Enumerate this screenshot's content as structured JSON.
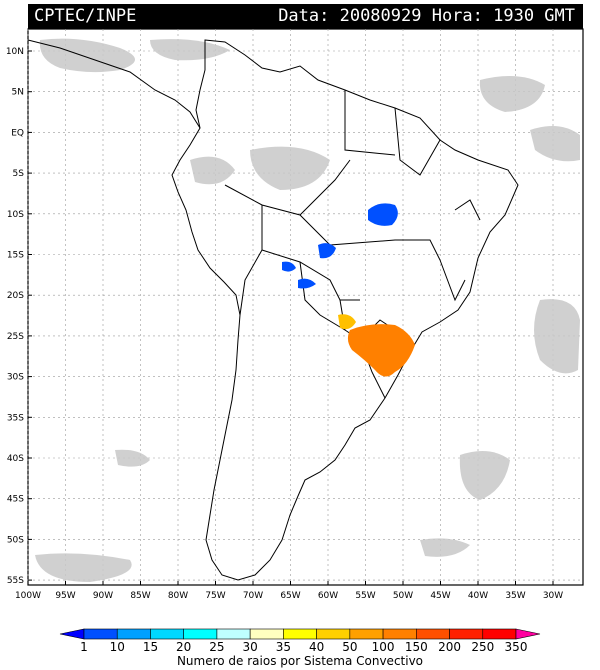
{
  "header": {
    "source": "CPTEC/INPE",
    "datetime": "Data: 20080929 Hora: 1930 GMT"
  },
  "map": {
    "lat_labels": [
      "10N",
      "5N",
      "EQ",
      "5S",
      "10S",
      "15S",
      "20S",
      "25S",
      "30S",
      "35S",
      "40S",
      "45S",
      "50S",
      "55S"
    ],
    "lon_labels": [
      "100W",
      "95W",
      "90W",
      "85W",
      "80W",
      "75W",
      "70W",
      "65W",
      "60W",
      "55W",
      "50W",
      "45W",
      "40W",
      "35W",
      "30W"
    ],
    "colors": {
      "ocean": "#ffffff",
      "land_border": "#000000",
      "cloud": "#c8c8c8",
      "grid": "#9a9a9a"
    }
  },
  "legend": {
    "title": "Numero de raios por Sistema Convectivo",
    "labels": [
      "1",
      "10",
      "15",
      "20",
      "25",
      "30",
      "35",
      "40",
      "50",
      "100",
      "150",
      "200",
      "250",
      "350"
    ],
    "colors": [
      "#0000ff",
      "#0050ff",
      "#00a0ff",
      "#00d8ff",
      "#00ffff",
      "#bfffff",
      "#ffffc0",
      "#ffff00",
      "#ffd000",
      "#ffa000",
      "#ff8000",
      "#ff5000",
      "#ff2000",
      "#ff0000",
      "#ff00a0"
    ]
  }
}
